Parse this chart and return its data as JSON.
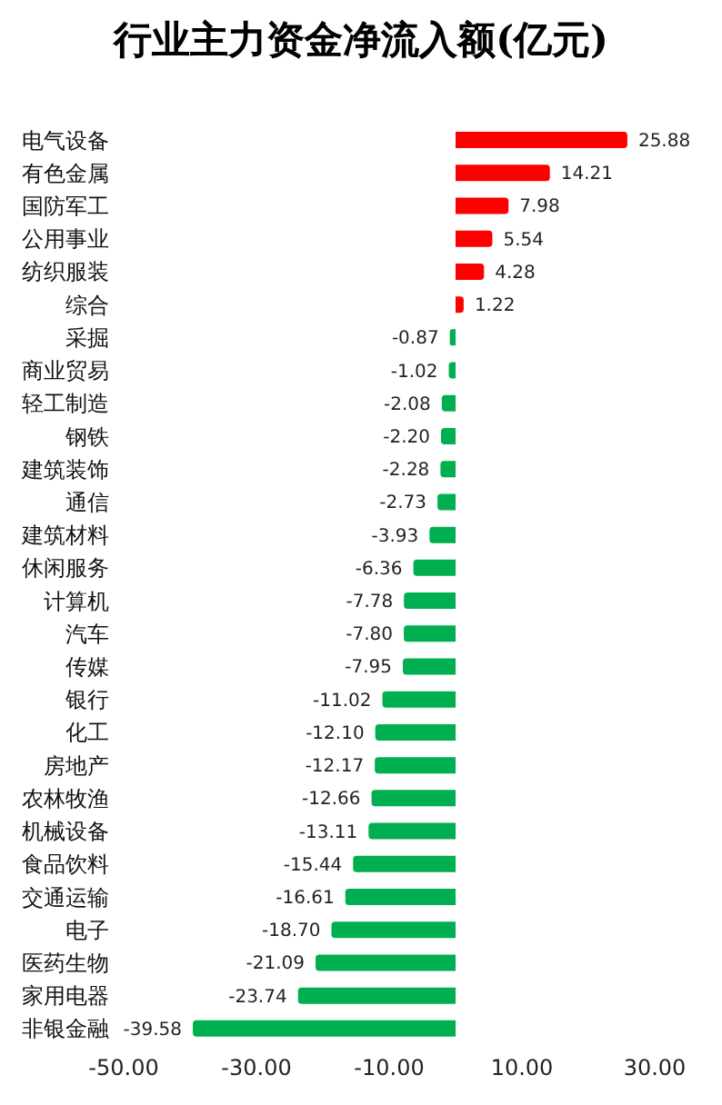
{
  "chart_data": {
    "type": "bar",
    "orientation": "horizontal",
    "title": "行业主力资金净流入额(亿元)",
    "categories": [
      "电气设备",
      "有色金属",
      "国防军工",
      "公用事业",
      "纺织服装",
      "综合",
      "采掘",
      "商业贸易",
      "轻工制造",
      "钢铁",
      "建筑装饰",
      "通信",
      "建筑材料",
      "休闲服务",
      "计算机",
      "汽车",
      "传媒",
      "银行",
      "化工",
      "房地产",
      "农林牧渔",
      "机械设备",
      "食品饮料",
      "交通运输",
      "电子",
      "医药生物",
      "家用电器",
      "非银金融"
    ],
    "values": [
      25.88,
      14.21,
      7.98,
      5.54,
      4.28,
      1.22,
      -0.87,
      -1.02,
      -2.08,
      -2.2,
      -2.28,
      -2.73,
      -3.93,
      -6.36,
      -7.78,
      -7.8,
      -7.95,
      -11.02,
      -12.1,
      -12.17,
      -12.66,
      -13.11,
      -15.44,
      -16.61,
      -18.7,
      -21.09,
      -23.74,
      -39.58
    ],
    "colors": [
      "#ff0000",
      "#ff0000",
      "#ff0000",
      "#ff0000",
      "#ff0000",
      "#ff0000",
      "#00b050",
      "#00b050",
      "#00b050",
      "#00b050",
      "#00b050",
      "#00b050",
      "#00b050",
      "#00b050",
      "#00b050",
      "#00b050",
      "#00b050",
      "#00b050",
      "#00b050",
      "#00b050",
      "#00b050",
      "#00b050",
      "#00b050",
      "#00b050",
      "#00b050",
      "#00b050",
      "#00b050",
      "#00b050"
    ],
    "xlim": [
      -50,
      30
    ],
    "xticks": [
      {
        "value": -50,
        "label": "-50.00"
      },
      {
        "value": -30,
        "label": "-30.00"
      },
      {
        "value": -10,
        "label": "-10.00"
      },
      {
        "value": 10,
        "label": "10.00"
      },
      {
        "value": 30,
        "label": "30.00"
      }
    ],
    "value_labels": [
      "25.88",
      "14.21",
      "7.98",
      "5.54",
      "4.28",
      "1.22",
      "-0.87",
      "-1.02",
      "-2.08",
      "-2.20",
      "-2.28",
      "-2.73",
      "-3.93",
      "-6.36",
      "-7.78",
      "-7.80",
      "-7.95",
      "-11.02",
      "-12.10",
      "-12.17",
      "-12.66",
      "-13.11",
      "-15.44",
      "-16.61",
      "-18.70",
      "-21.09",
      "-23.74",
      "-39.58"
    ]
  }
}
